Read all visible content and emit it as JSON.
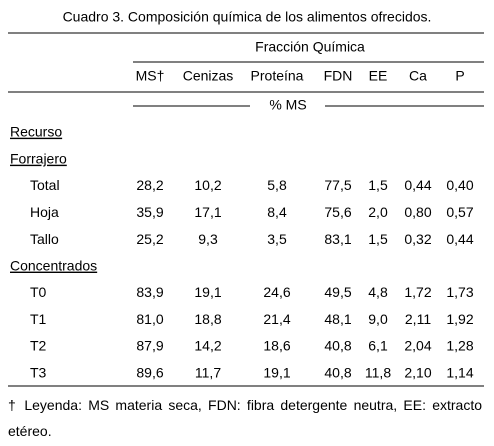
{
  "title": "Cuadro 3. Composición química de los alimentos ofrecidos.",
  "group_header": "Fracción Química",
  "columns": [
    "MS†",
    "Cenizas",
    "Proteína",
    "FDN",
    "EE",
    "Ca",
    "P"
  ],
  "unit": "% MS",
  "row_header": "Recurso",
  "sections": [
    {
      "label": "Forrajero",
      "rows": [
        {
          "label": "Total",
          "values": [
            "28,2",
            "10,2",
            "5,8",
            "77,5",
            "1,5",
            "0,44",
            "0,40"
          ]
        },
        {
          "label": "Hoja",
          "values": [
            "35,9",
            "17,1",
            "8,4",
            "75,6",
            "2,0",
            "0,80",
            "0,57"
          ]
        },
        {
          "label": "Tallo",
          "values": [
            "25,2",
            "9,3",
            "3,5",
            "83,1",
            "1,5",
            "0,32",
            "0,44"
          ]
        }
      ]
    },
    {
      "label": "Concentrados",
      "rows": [
        {
          "label": "T0",
          "values": [
            "83,9",
            "19,1",
            "24,6",
            "49,5",
            "4,8",
            "1,72",
            "1,73"
          ]
        },
        {
          "label": "T1",
          "values": [
            "81,0",
            "18,8",
            "21,4",
            "48,1",
            "9,0",
            "2,11",
            "1,92"
          ]
        },
        {
          "label": "T2",
          "values": [
            "87,9",
            "14,2",
            "18,6",
            "40,8",
            "6,1",
            "2,04",
            "1,28"
          ]
        },
        {
          "label": "T3",
          "values": [
            "89,6",
            "11,7",
            "19,1",
            "40,8",
            "11,8",
            "2,10",
            "1,14"
          ]
        }
      ]
    }
  ],
  "footnote": "† Leyenda: MS materia seca, FDN: fibra detergente neutra, EE: extracto etéreo."
}
